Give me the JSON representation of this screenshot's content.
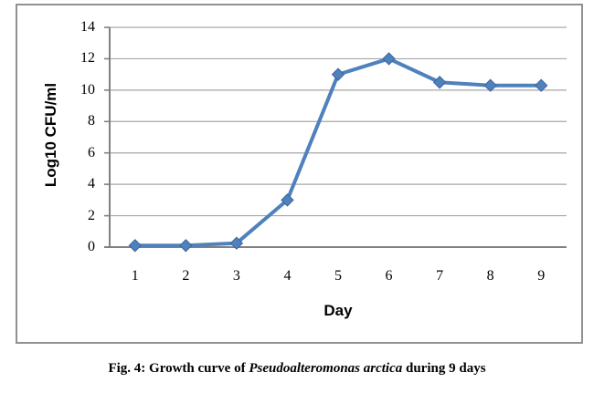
{
  "figure": {
    "caption": {
      "prefix": "Fig. 4: Growth curve of ",
      "italic": "Pseudoalteromonas arctica",
      "suffix": " during 9 days"
    }
  },
  "chart_data": {
    "type": "line",
    "title": "",
    "xlabel": "Day",
    "ylabel": "Log10 CFU/ml",
    "x": [
      1,
      2,
      3,
      4,
      5,
      6,
      7,
      8,
      9
    ],
    "xticks": [
      "1",
      "2",
      "3",
      "4",
      "5",
      "6",
      "7",
      "8",
      "9"
    ],
    "values": [
      0.1,
      0.1,
      0.25,
      3,
      11,
      12,
      10.5,
      10.3,
      10.3
    ],
    "ylim": [
      0,
      14
    ],
    "yticks": [
      0,
      2,
      4,
      6,
      8,
      10,
      12,
      14
    ],
    "grid": "horizontal",
    "legend": "none",
    "marker": "diamond",
    "colors": {
      "line": "#4F81BD",
      "marker_edge": "#3A679C",
      "gridline": "#A6A6A6",
      "axis": "#808080",
      "border": "#919191",
      "text": "#000000"
    }
  }
}
